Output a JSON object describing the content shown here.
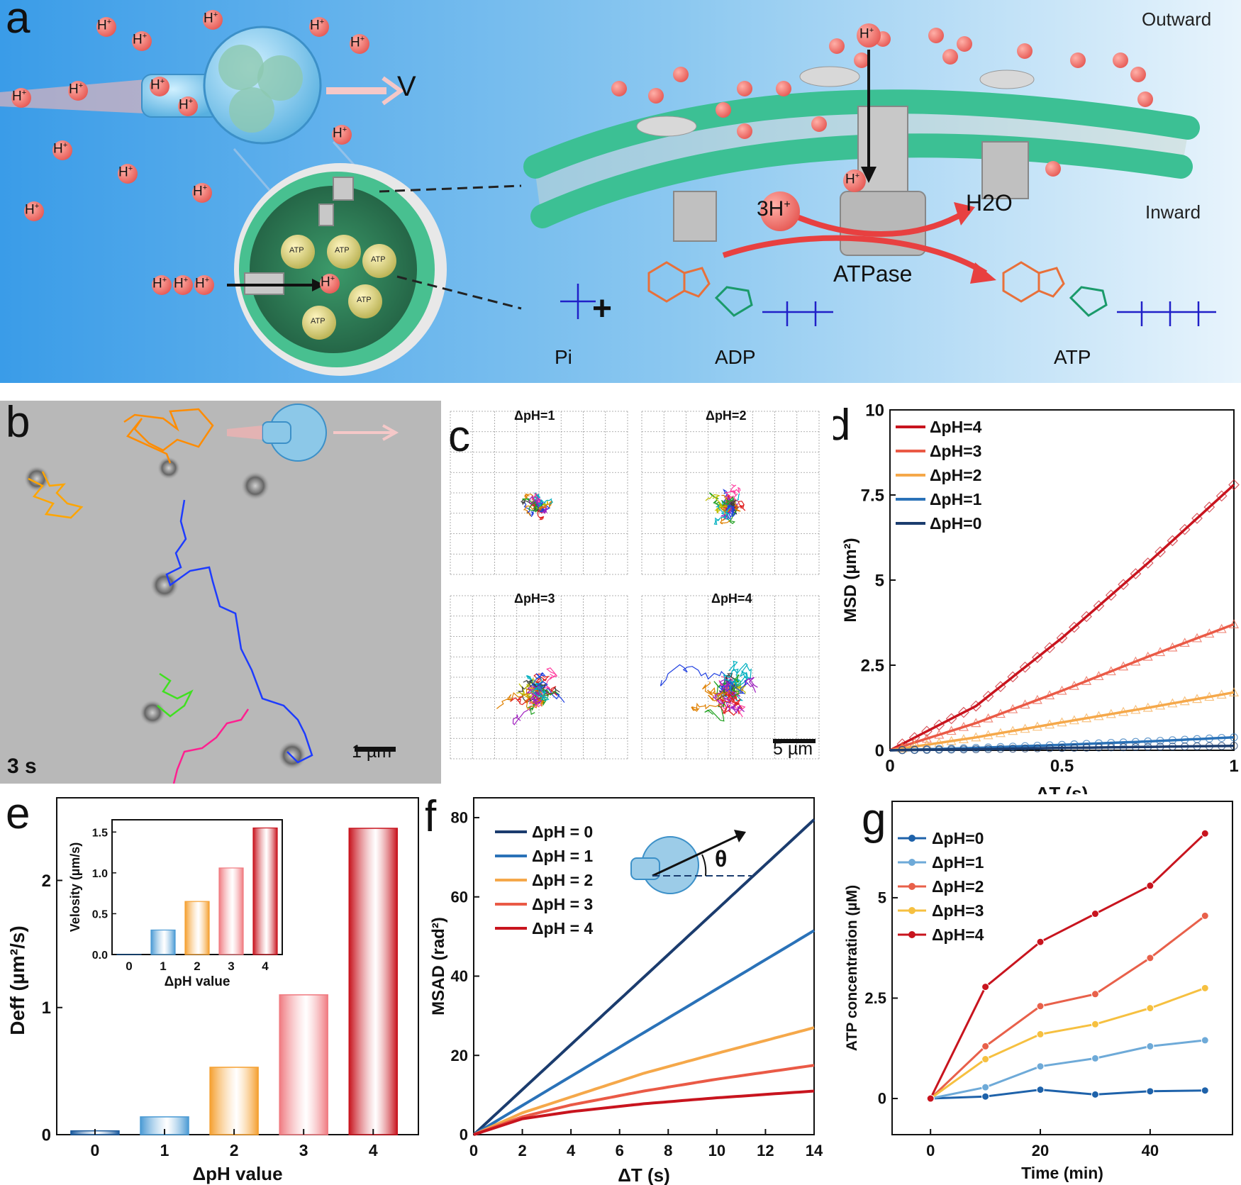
{
  "panel_a": {
    "label": "a",
    "outward": "Outward",
    "inward": "Inward",
    "velocity": "V",
    "atpase": "ATPase",
    "three_h": "3H",
    "water": "H2O",
    "pi_label": "Pi",
    "adp_label": "ADP",
    "atp_label": "ATP",
    "vesicle_atp": "ATP",
    "plus": "+",
    "h_ion": "H"
  },
  "panel_b": {
    "label": "b",
    "time": "3 s",
    "scalebar": "1 µm",
    "track_colors": [
      "#ff8c00",
      "#ffa500",
      "#1e3cff",
      "#3060e0",
      "#40e020",
      "#ff2090"
    ]
  },
  "panel_c": {
    "label": "c",
    "scalebar": "5 µm",
    "subplots": [
      {
        "title": "ΔpH=1"
      },
      {
        "title": "ΔpH=2"
      },
      {
        "title": "ΔpH=3"
      },
      {
        "title": "ΔpH=4"
      }
    ]
  },
  "panel_d": {
    "label": "d"
  },
  "panel_e": {
    "label": "e",
    "inset_ylabel": "Velosity  (µm/s)"
  },
  "panel_f": {
    "label": "f",
    "theta": "θ"
  },
  "panel_g": {
    "label": "g"
  },
  "chart_data": [
    {
      "id": "d",
      "type": "line",
      "xlabel": "ΔT (s)",
      "ylabel": "MSD (µm²)",
      "xlim": [
        0,
        1
      ],
      "ylim": [
        0,
        10
      ],
      "xticks": [
        "0",
        "0.5",
        "1"
      ],
      "yticks": [
        "0",
        "2.5",
        "5",
        "7.5",
        "10"
      ],
      "legend_position": "top-left",
      "series": [
        {
          "name": "ΔpH=4",
          "color": "#c8141e",
          "x": [
            0,
            0.25,
            0.5,
            0.75,
            1
          ],
          "y": [
            0,
            1.3,
            3.3,
            5.5,
            7.8
          ]
        },
        {
          "name": "ΔpH=3",
          "color": "#ea5a46",
          "x": [
            0,
            0.25,
            0.5,
            0.75,
            1
          ],
          "y": [
            0,
            0.8,
            1.75,
            2.75,
            3.7
          ]
        },
        {
          "name": "ΔpH=2",
          "color": "#f5a84a",
          "x": [
            0,
            0.25,
            0.5,
            0.75,
            1
          ],
          "y": [
            0,
            0.38,
            0.82,
            1.25,
            1.7
          ]
        },
        {
          "name": "ΔpH=1",
          "color": "#2a72b8",
          "x": [
            0,
            0.25,
            0.5,
            0.75,
            1
          ],
          "y": [
            0,
            0.07,
            0.16,
            0.26,
            0.38
          ]
        },
        {
          "name": "ΔpH=0",
          "color": "#1b3c6e",
          "x": [
            0,
            0.25,
            0.5,
            0.75,
            1
          ],
          "y": [
            0,
            0.03,
            0.07,
            0.1,
            0.13
          ]
        }
      ]
    },
    {
      "id": "e",
      "type": "bar",
      "xlabel": "ΔpH value",
      "ylabel": "Deff (µm²/s)",
      "categories": [
        "0",
        "1",
        "2",
        "3",
        "4"
      ],
      "values": [
        0.03,
        0.14,
        0.53,
        1.1,
        2.41
      ],
      "ylim": [
        0,
        2.65
      ],
      "yticks": [
        "0",
        "1",
        "2"
      ],
      "colors": [
        "#1a5a9e",
        "#4a9ad4",
        "#f5a030",
        "#f07a80",
        "#c8141e"
      ],
      "inset": {
        "xlabel": "ΔpH value",
        "ylabel": "Velosity  (µm/s)",
        "categories": [
          "0",
          "1",
          "2",
          "3",
          "4"
        ],
        "values": [
          0.0,
          0.3,
          0.65,
          1.06,
          1.55
        ],
        "ylim": [
          0,
          1.65
        ],
        "yticks": [
          "0.0",
          "0.5",
          "1.0",
          "1.5"
        ]
      }
    },
    {
      "id": "f",
      "type": "line",
      "xlabel": "ΔT  (s)",
      "ylabel": "MSAD (rad²)",
      "xlim": [
        0,
        14
      ],
      "ylim": [
        0,
        85
      ],
      "xticks": [
        "0",
        "2",
        "4",
        "6",
        "8",
        "10",
        "12",
        "14"
      ],
      "yticks": [
        "0",
        "20",
        "40",
        "60",
        "80"
      ],
      "legend_position": "top-left",
      "series": [
        {
          "name": "ΔpH = 0",
          "color": "#1b3c6e",
          "x": [
            0,
            14
          ],
          "y": [
            0,
            79.5
          ]
        },
        {
          "name": "ΔpH = 1",
          "color": "#2a72b8",
          "x": [
            0,
            14
          ],
          "y": [
            0,
            51.5
          ]
        },
        {
          "name": "ΔpH = 2",
          "color": "#f5a84a",
          "x": [
            0,
            2,
            4,
            7,
            10,
            14
          ],
          "y": [
            0,
            5.5,
            9.5,
            15.5,
            20.5,
            27
          ]
        },
        {
          "name": "ΔpH = 3",
          "color": "#ea5a46",
          "x": [
            0,
            2,
            4,
            7,
            10,
            14
          ],
          "y": [
            0,
            4.5,
            7.5,
            11,
            14,
            17.5
          ]
        },
        {
          "name": "ΔpH = 4",
          "color": "#c8141e",
          "x": [
            0,
            2,
            4,
            7,
            10,
            14
          ],
          "y": [
            0,
            4,
            5.8,
            7.8,
            9.3,
            11
          ]
        }
      ]
    },
    {
      "id": "g",
      "type": "line",
      "xlabel": "Time (min)",
      "ylabel": "ATP concentration (µM)",
      "xlim": [
        -7,
        55
      ],
      "ylim": [
        -0.9,
        7.4
      ],
      "xticks": [
        "0",
        "20",
        "40"
      ],
      "yticks": [
        "0",
        "2.5",
        "5"
      ],
      "legend_position": "top-left",
      "series": [
        {
          "name": "ΔpH=0",
          "color": "#1e62aa",
          "x": [
            0,
            10,
            20,
            30,
            40,
            50
          ],
          "y": [
            0,
            0.05,
            0.22,
            0.1,
            0.18,
            0.2
          ]
        },
        {
          "name": "ΔpH=1",
          "color": "#6eaad8",
          "x": [
            0,
            10,
            20,
            30,
            40,
            50
          ],
          "y": [
            0,
            0.28,
            0.8,
            1.0,
            1.3,
            1.45
          ]
        },
        {
          "name": "ΔpH=2",
          "color": "#e8604a",
          "x": [
            0,
            10,
            20,
            30,
            40,
            50
          ],
          "y": [
            0,
            1.3,
            2.3,
            2.6,
            3.5,
            4.55
          ]
        },
        {
          "name": "ΔpH=3",
          "color": "#f6c040",
          "x": [
            0,
            10,
            20,
            30,
            40,
            50
          ],
          "y": [
            0,
            0.98,
            1.6,
            1.85,
            2.25,
            2.75
          ]
        },
        {
          "name": "ΔpH=4",
          "color": "#c8141e",
          "x": [
            0,
            10,
            20,
            30,
            40,
            50
          ],
          "y": [
            0,
            2.78,
            3.9,
            4.6,
            5.3,
            6.6
          ]
        }
      ]
    }
  ]
}
